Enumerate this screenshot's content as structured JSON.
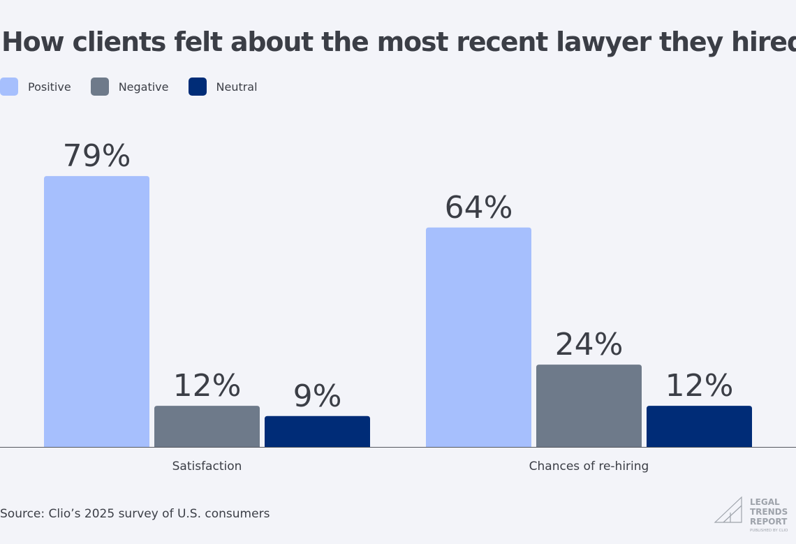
{
  "chart_data": {
    "type": "bar",
    "title": "How clients felt about the most recent lawyer they hired",
    "categories": [
      "Satisfaction",
      "Chances of re-hiring"
    ],
    "series": [
      {
        "name": "Positive",
        "color": "#a6bffd",
        "values": [
          79,
          64
        ]
      },
      {
        "name": "Negative",
        "color": "#6e7a8a",
        "values": [
          12,
          24
        ]
      },
      {
        "name": "Neutral",
        "color": "#002c77",
        "values": [
          9,
          12
        ]
      }
    ],
    "value_suffix": "%",
    "ylim": [
      0,
      100
    ],
    "grid": false,
    "legend": "top-left"
  },
  "source": "Source: Clio’s 2025 survey of U.S. consumers",
  "logo": {
    "line1": "LEGAL",
    "line2": "TRENDS",
    "line3": "REPORT",
    "line4": "PUBLISHED BY CLIO"
  }
}
